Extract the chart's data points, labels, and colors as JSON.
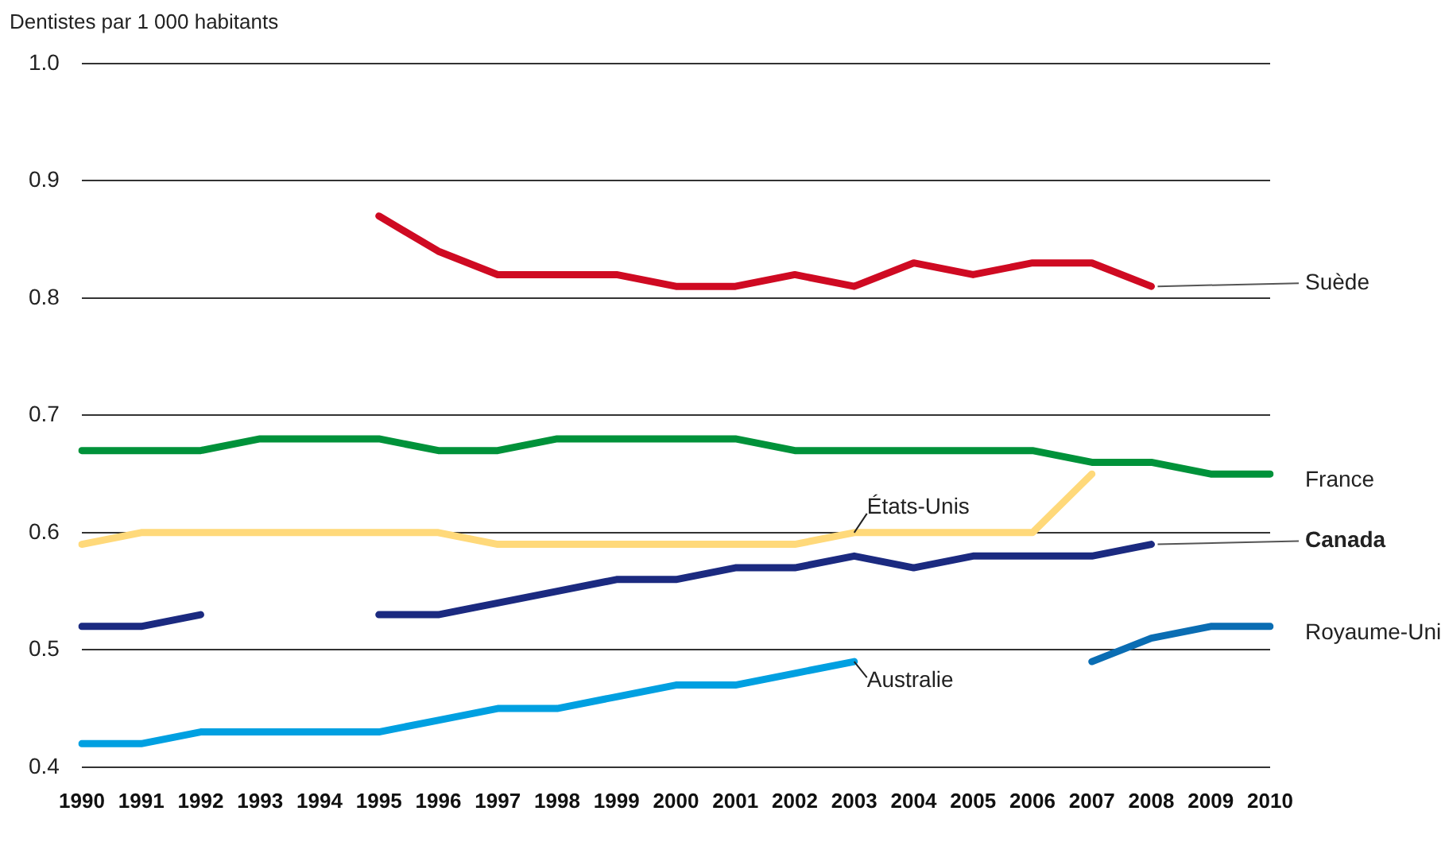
{
  "chart_data": {
    "type": "line",
    "ylabel": "Dentistes par 1 000 habitants",
    "categories": [
      "1990",
      "1991",
      "1992",
      "1993",
      "1994",
      "1995",
      "1996",
      "1997",
      "1998",
      "1999",
      "2000",
      "2001",
      "2002",
      "2003",
      "2004",
      "2005",
      "2006",
      "2007",
      "2008",
      "2009",
      "2010"
    ],
    "series": [
      {
        "name": "Suède",
        "color": "#cf0a22",
        "values": [
          null,
          null,
          null,
          null,
          null,
          0.87,
          0.84,
          0.82,
          0.82,
          0.82,
          0.81,
          0.81,
          0.82,
          0.81,
          0.83,
          0.82,
          0.83,
          0.83,
          0.81,
          null,
          null
        ]
      },
      {
        "name": "France",
        "color": "#00923a",
        "values": [
          0.67,
          0.67,
          0.67,
          0.68,
          0.68,
          0.68,
          0.67,
          0.67,
          0.68,
          0.68,
          0.68,
          0.68,
          0.67,
          0.67,
          0.67,
          0.67,
          0.67,
          0.66,
          0.66,
          0.65,
          0.65
        ]
      },
      {
        "name": "États-Unis",
        "color": "#ffd97a",
        "values": [
          0.59,
          0.6,
          0.6,
          0.6,
          0.6,
          0.6,
          0.6,
          0.59,
          0.59,
          0.59,
          0.59,
          0.59,
          0.59,
          0.6,
          0.6,
          0.6,
          0.6,
          0.65,
          null,
          null,
          null
        ]
      },
      {
        "name": "Canada",
        "color": "#1b2a80",
        "values": [
          0.52,
          0.52,
          0.53,
          null,
          null,
          0.53,
          0.53,
          0.54,
          0.55,
          0.56,
          0.56,
          0.57,
          0.57,
          0.58,
          0.57,
          0.58,
          0.58,
          0.58,
          0.59,
          null,
          null
        ]
      },
      {
        "name": "Australie",
        "color": "#00a0e1",
        "values": [
          0.42,
          0.42,
          0.43,
          0.43,
          0.43,
          0.43,
          0.44,
          0.45,
          0.45,
          0.46,
          0.47,
          0.47,
          0.48,
          0.49,
          null,
          null,
          null,
          null,
          null,
          null,
          null
        ]
      },
      {
        "name": "Royaume-Uni",
        "color": "#0a6db3",
        "values": [
          null,
          null,
          null,
          null,
          null,
          null,
          null,
          null,
          null,
          null,
          null,
          null,
          null,
          null,
          null,
          null,
          null,
          0.49,
          0.51,
          0.52,
          0.52
        ]
      }
    ],
    "ylim": [
      0.4,
      1.0
    ],
    "yticks": [
      0.4,
      0.5,
      0.6,
      0.7,
      0.8,
      0.9,
      {
        "value": 1.0,
        "label": "1.0"
      }
    ],
    "grid": "y",
    "line_style": "solid"
  }
}
